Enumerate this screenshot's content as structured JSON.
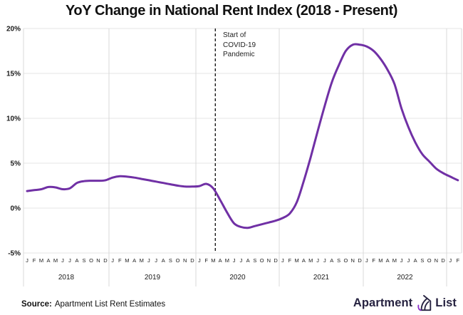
{
  "title": "YoY Change in National Rent Index (2018 - Present)",
  "annotation": {
    "line1": "Start of",
    "line2": "COVID-19",
    "line3": "Pandemic"
  },
  "source": {
    "label": "Source:",
    "text": "Apartment List Rent Estimates"
  },
  "logo": {
    "part1": "Apartment",
    "part2": "List"
  },
  "colors": {
    "line": "#7030a5",
    "h_grid": "#e4e4e4",
    "v_grid": "#d9d9d9",
    "dashed_line": "#1a1a1a",
    "tick_text": "#1a1a1a",
    "logo_navy": "#262240",
    "logo_purple": "#8b2fc9"
  },
  "chart_data": {
    "type": "line",
    "title": "YoY Change in National Rent Index (2018 - Present)",
    "xlabel": "",
    "ylabel": "",
    "ylim": [
      -5,
      20
    ],
    "grid": true,
    "legend": "none",
    "y_ticks": [
      20,
      15,
      10,
      5,
      0,
      -5
    ],
    "y_tick_labels": [
      "20%",
      "15%",
      "10%",
      "5%",
      "0%",
      "-5%"
    ],
    "month_letters": [
      "J",
      "F",
      "M",
      "A",
      "M",
      "J",
      "J",
      "A",
      "S",
      "O",
      "N",
      "D"
    ],
    "extra_months": [
      "J",
      "F"
    ],
    "years": [
      "2018",
      "2019",
      "2020",
      "2021",
      "2022"
    ],
    "x_start": "2018-01",
    "x_end": "2023-02",
    "x_frequency": "monthly",
    "series": [
      {
        "name": "National Rent Index YoY Change (%)",
        "values": [
          1.9,
          2.0,
          2.1,
          2.35,
          2.3,
          2.1,
          2.2,
          2.8,
          3.0,
          3.05,
          3.05,
          3.1,
          3.4,
          3.55,
          3.5,
          3.4,
          3.25,
          3.1,
          2.95,
          2.8,
          2.65,
          2.5,
          2.4,
          2.4,
          2.45,
          2.7,
          2.2,
          0.9,
          -0.5,
          -1.7,
          -2.1,
          -2.2,
          -2.0,
          -1.8,
          -1.6,
          -1.4,
          -1.1,
          -0.6,
          0.65,
          3.0,
          5.7,
          8.6,
          11.4,
          14.0,
          15.9,
          17.5,
          18.2,
          18.2,
          18.0,
          17.5,
          16.6,
          15.4,
          13.8,
          11.1,
          9.0,
          7.3,
          6.0,
          5.2,
          4.4,
          3.9,
          3.5,
          3.1
        ]
      }
    ],
    "annotations": [
      {
        "text": "Start of COVID-19 Pandemic",
        "x": "2020-03",
        "month_index": 26.8,
        "style": "dashed-vertical-line"
      }
    ]
  }
}
